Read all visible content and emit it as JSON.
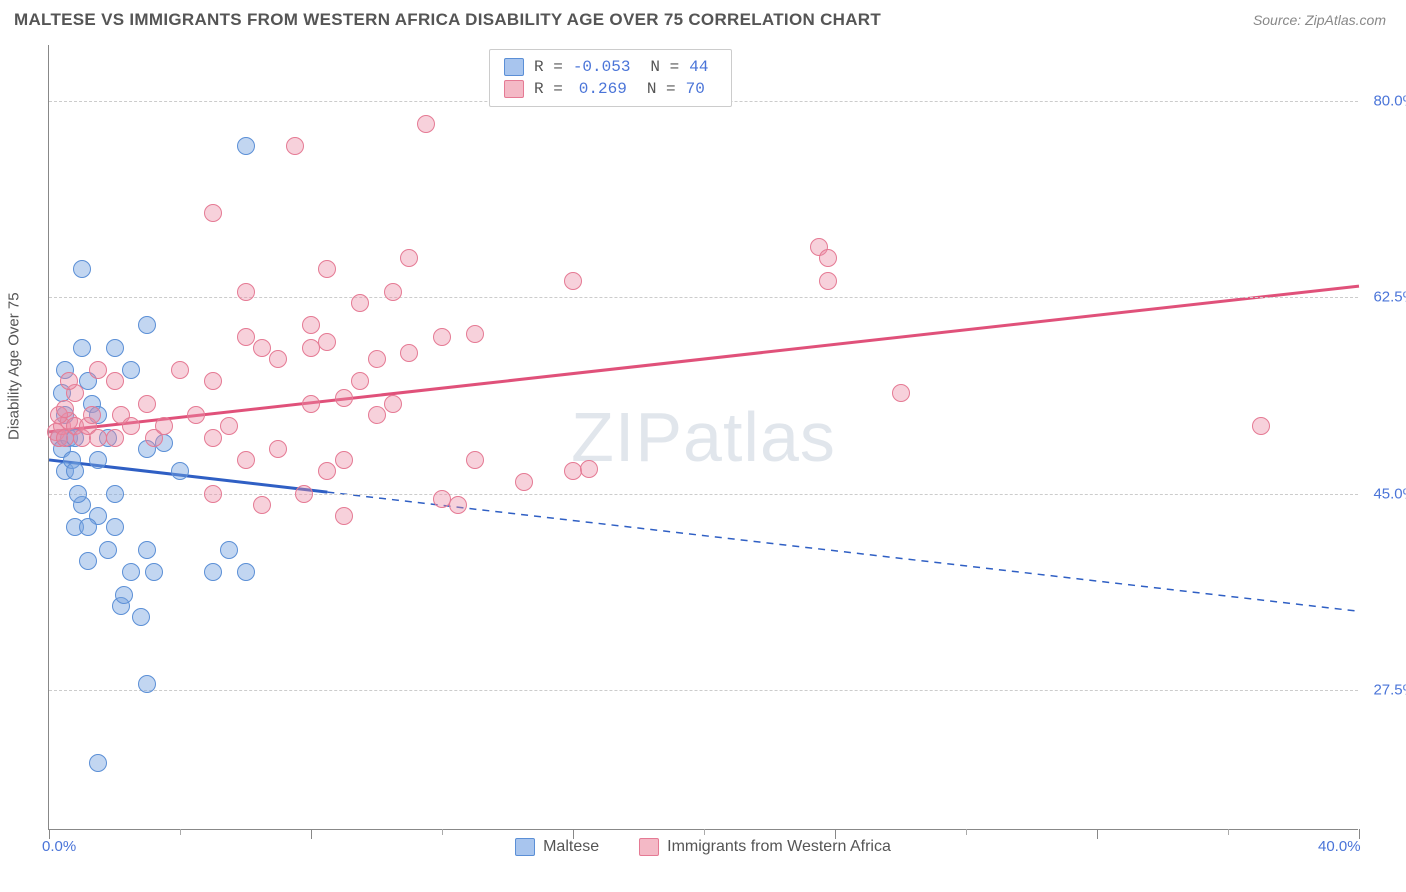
{
  "title": "MALTESE VS IMMIGRANTS FROM WESTERN AFRICA DISABILITY AGE OVER 75 CORRELATION CHART",
  "source": "Source: ZipAtlas.com",
  "watermark": {
    "bold": "ZIP",
    "light": "atlas"
  },
  "chart": {
    "type": "scatter",
    "x_min": 0.0,
    "x_max": 40.0,
    "y_min": 15.0,
    "y_max": 85.0,
    "y_gridlines": [
      27.5,
      45.0,
      62.5,
      80.0
    ],
    "y_tick_labels": [
      "27.5%",
      "45.0%",
      "62.5%",
      "80.0%"
    ],
    "x_major_ticks": [
      0,
      8,
      16,
      24,
      32,
      40
    ],
    "x_minor_ticks": [
      4,
      12,
      20,
      28,
      36
    ],
    "x_label_start": "0.0%",
    "x_label_end": "40.0%",
    "y_axis_title": "Disability Age Over 75",
    "legend_top": [
      {
        "swatch_fill": "#a8c5ee",
        "swatch_border": "#5b8fd6",
        "r_label": "R =",
        "r_val": "-0.053",
        "n_label": "N =",
        "n_val": "44"
      },
      {
        "swatch_fill": "#f4b9c6",
        "swatch_border": "#e57a94",
        "r_label": "R =",
        "r_val": "0.269",
        "n_label": "N =",
        "n_val": "70"
      }
    ],
    "legend_bottom": [
      {
        "swatch_fill": "#a8c5ee",
        "swatch_border": "#5b8fd6",
        "label": "Maltese"
      },
      {
        "swatch_fill": "#f4b9c6",
        "swatch_border": "#e57a94",
        "label": "Immigrants from Western Africa"
      }
    ],
    "series": [
      {
        "name": "Maltese",
        "color_fill": "rgba(120,165,225,0.45)",
        "color_border": "#5b8fd6",
        "trend": {
          "color": "#2f5fc4",
          "solid_until_x": 8.5,
          "y_start": 48.0,
          "y_end": 34.5
        },
        "points": [
          [
            0.3,
            50
          ],
          [
            0.4,
            49
          ],
          [
            0.5,
            52
          ],
          [
            0.6,
            50
          ],
          [
            0.5,
            47
          ],
          [
            0.7,
            48
          ],
          [
            0.8,
            50
          ],
          [
            0.8,
            47
          ],
          [
            0.4,
            54
          ],
          [
            0.5,
            56
          ],
          [
            1.0,
            58
          ],
          [
            1.2,
            55
          ],
          [
            1.0,
            65
          ],
          [
            1.3,
            53
          ],
          [
            1.5,
            52
          ],
          [
            1.0,
            44
          ],
          [
            2.0,
            58
          ],
          [
            2.5,
            56
          ],
          [
            3.0,
            60
          ],
          [
            1.5,
            48
          ],
          [
            1.8,
            50
          ],
          [
            2.2,
            35
          ],
          [
            2.3,
            36
          ],
          [
            2.5,
            38
          ],
          [
            2.8,
            34
          ],
          [
            3.0,
            40
          ],
          [
            3.2,
            38
          ],
          [
            5.0,
            38
          ],
          [
            6.0,
            38
          ],
          [
            1.5,
            43
          ],
          [
            2.0,
            45
          ],
          [
            0.8,
            42
          ],
          [
            0.9,
            45
          ],
          [
            1.2,
            42
          ],
          [
            4.0,
            47
          ],
          [
            3.0,
            49
          ],
          [
            3.5,
            49.5
          ],
          [
            6.0,
            76
          ],
          [
            3.0,
            28
          ],
          [
            1.5,
            21
          ],
          [
            1.2,
            39
          ],
          [
            1.8,
            40
          ],
          [
            5.5,
            40
          ],
          [
            2.0,
            42
          ]
        ]
      },
      {
        "name": "Immigrants from Western Africa",
        "color_fill": "rgba(235,140,165,0.40)",
        "color_border": "#e57a94",
        "trend": {
          "color": "#e0517a",
          "solid_until_x": 40,
          "y_start": 50.5,
          "y_end": 63.5
        },
        "points": [
          [
            0.2,
            50.5
          ],
          [
            0.3,
            50
          ],
          [
            0.4,
            51
          ],
          [
            0.5,
            50
          ],
          [
            0.6,
            51.5
          ],
          [
            0.3,
            52
          ],
          [
            0.5,
            52.5
          ],
          [
            0.8,
            51
          ],
          [
            1.0,
            50
          ],
          [
            1.2,
            51
          ],
          [
            1.3,
            52
          ],
          [
            1.5,
            50
          ],
          [
            0.8,
            54
          ],
          [
            0.6,
            55
          ],
          [
            2.0,
            50
          ],
          [
            2.2,
            52
          ],
          [
            2.5,
            51
          ],
          [
            3.0,
            53
          ],
          [
            3.2,
            50
          ],
          [
            3.5,
            51
          ],
          [
            2.0,
            55
          ],
          [
            1.5,
            56
          ],
          [
            4.0,
            56
          ],
          [
            5.0,
            55
          ],
          [
            6.0,
            59
          ],
          [
            6.5,
            58
          ],
          [
            7.0,
            57
          ],
          [
            4.5,
            52
          ],
          [
            5.0,
            50
          ],
          [
            5.5,
            51
          ],
          [
            8.0,
            58
          ],
          [
            8.5,
            58.5
          ],
          [
            10.0,
            57
          ],
          [
            11.0,
            57.5
          ],
          [
            6.0,
            63
          ],
          [
            8.0,
            60
          ],
          [
            9.5,
            55
          ],
          [
            12.0,
            59
          ],
          [
            13.0,
            59.2
          ],
          [
            11.5,
            78
          ],
          [
            7.5,
            76
          ],
          [
            11.0,
            66
          ],
          [
            16.0,
            64
          ],
          [
            13.0,
            48
          ],
          [
            14.5,
            46
          ],
          [
            16.0,
            47
          ],
          [
            16.5,
            47.2
          ],
          [
            6.0,
            48
          ],
          [
            7.0,
            49
          ],
          [
            8.5,
            47
          ],
          [
            9.0,
            48
          ],
          [
            7.8,
            45
          ],
          [
            8.0,
            53
          ],
          [
            9.0,
            53.5
          ],
          [
            10.0,
            52
          ],
          [
            10.5,
            53
          ],
          [
            9.0,
            43
          ],
          [
            6.5,
            44
          ],
          [
            12.0,
            44.5
          ],
          [
            12.5,
            44
          ],
          [
            23.5,
            67
          ],
          [
            23.8,
            66
          ],
          [
            23.8,
            64
          ],
          [
            26.0,
            54
          ],
          [
            37.0,
            51
          ],
          [
            5.0,
            70
          ],
          [
            8.5,
            65
          ],
          [
            9.5,
            62
          ],
          [
            10.5,
            63
          ],
          [
            5.0,
            45
          ]
        ]
      }
    ]
  }
}
